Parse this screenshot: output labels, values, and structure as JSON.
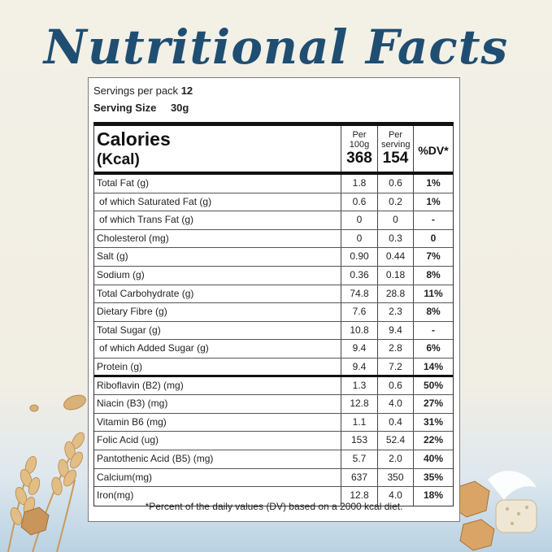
{
  "title": "Nutritional Facts",
  "servings": {
    "per_pack_label": "Servings per pack",
    "per_pack_value": "12",
    "size_label": "Serving Size",
    "size_value": "30g"
  },
  "header": {
    "calories_label": "Calories",
    "unit_label": "(Kcal)",
    "per100_label": "Per 100g",
    "per100_value": "368",
    "perserving_label": "Per serving",
    "perserving_value": "154",
    "dv_label": "%DV*"
  },
  "rows": [
    {
      "name": "Total Fat (g)",
      "per100": "1.8",
      "serving": "0.6",
      "dv": "1%"
    },
    {
      "name": " of which Saturated Fat (g)",
      "per100": "0.6",
      "serving": "0.2",
      "dv": "1%"
    },
    {
      "name": " of which Trans Fat (g)",
      "per100": "0",
      "serving": "0",
      "dv": "-"
    },
    {
      "name": "Cholesterol (mg)",
      "per100": "0",
      "serving": "0.3",
      "dv": "0"
    },
    {
      "name": "Salt (g)",
      "per100": "0.90",
      "serving": "0.44",
      "dv": "7%"
    },
    {
      "name": "Sodium (g)",
      "per100": "0.36",
      "serving": "0.18",
      "dv": "8%"
    },
    {
      "name": "Total Carbohydrate (g)",
      "per100": "74.8",
      "serving": "28.8",
      "dv": "11%"
    },
    {
      "name": "Dietary Fibre (g)",
      "per100": "7.6",
      "serving": "2.3",
      "dv": "8%"
    },
    {
      "name": "Total Sugar (g)",
      "per100": "10.8",
      "serving": "9.4",
      "dv": "-"
    },
    {
      "name": " of which Added Sugar (g)",
      "per100": "9.4",
      "serving": "2.8",
      "dv": "6%"
    },
    {
      "name": "Protein (g)",
      "per100": "9.4",
      "serving": "7.2",
      "dv": "14%"
    },
    {
      "name": "Riboflavin (B2) (mg)",
      "per100": "1.3",
      "serving": "0.6",
      "dv": "50%"
    },
    {
      "name": "Niacin (B3) (mg)",
      "per100": "12.8",
      "serving": "4.0",
      "dv": "27%"
    },
    {
      "name": "Vitamin B6 (mg)",
      "per100": "1.1",
      "serving": "0.4",
      "dv": "31%"
    },
    {
      "name": "Folic Acid (ug)",
      "per100": "153",
      "serving": "52.4",
      "dv": "22%"
    },
    {
      "name": "Pantothenic Acid (B5) (mg)",
      "per100": "5.7",
      "serving": "2.0",
      "dv": "40%"
    },
    {
      "name": "Calcium(mg)",
      "per100": "637",
      "serving": "350",
      "dv": "35%"
    },
    {
      "name": "Iron(mg)",
      "per100": "12.8",
      "serving": "4.0",
      "dv": "18%"
    }
  ],
  "footnote": "*Percent of the daily values (DV) based on a 2000 kcal diet."
}
